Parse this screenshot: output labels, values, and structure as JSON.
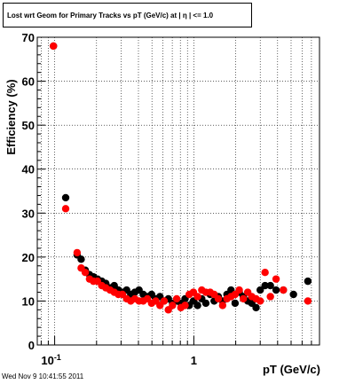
{
  "chart_data": {
    "type": "scatter",
    "title": "Lost wrt Geom for Primary Tracks vs pT (GeV/c) at |  η | <= 1.0",
    "xlabel": "pT (GeV/c)",
    "ylabel": "Efficiency (%)",
    "x_scale": "log",
    "xlim": [
      0.075,
      8.0
    ],
    "ylim": [
      0,
      70
    ],
    "x_tick_labels": [
      {
        "value": 0.1,
        "base": "10",
        "exp": "-1"
      },
      {
        "value": 1,
        "text": "1"
      }
    ],
    "y_tick_labels": [
      "0",
      "10",
      "20",
      "30",
      "40",
      "50",
      "60",
      "70"
    ],
    "grid": true,
    "series": [
      {
        "color": "#000000",
        "points": [
          {
            "x": 0.098,
            "y": 68.0
          },
          {
            "x": 0.12,
            "y": 33.5
          },
          {
            "x": 0.145,
            "y": 20.5
          },
          {
            "x": 0.155,
            "y": 19.5
          },
          {
            "x": 0.166,
            "y": 17.0
          },
          {
            "x": 0.178,
            "y": 16.0
          },
          {
            "x": 0.19,
            "y": 15.5
          },
          {
            "x": 0.203,
            "y": 15.0
          },
          {
            "x": 0.218,
            "y": 14.5
          },
          {
            "x": 0.233,
            "y": 14.0
          },
          {
            "x": 0.25,
            "y": 13.0
          },
          {
            "x": 0.268,
            "y": 13.5
          },
          {
            "x": 0.287,
            "y": 12.5
          },
          {
            "x": 0.307,
            "y": 12.0
          },
          {
            "x": 0.329,
            "y": 12.5
          },
          {
            "x": 0.352,
            "y": 11.5
          },
          {
            "x": 0.377,
            "y": 12.0
          },
          {
            "x": 0.404,
            "y": 12.5
          },
          {
            "x": 0.433,
            "y": 11.5
          },
          {
            "x": 0.464,
            "y": 11.0
          },
          {
            "x": 0.497,
            "y": 11.5
          },
          {
            "x": 0.533,
            "y": 10.5
          },
          {
            "x": 0.571,
            "y": 11.0
          },
          {
            "x": 0.612,
            "y": 10.0
          },
          {
            "x": 0.656,
            "y": 10.5
          },
          {
            "x": 0.703,
            "y": 9.5
          },
          {
            "x": 0.753,
            "y": 10.0
          },
          {
            "x": 0.807,
            "y": 9.5
          },
          {
            "x": 0.865,
            "y": 10.5
          },
          {
            "x": 0.927,
            "y": 9.0
          },
          {
            "x": 0.993,
            "y": 10.0
          },
          {
            "x": 1.064,
            "y": 9.0
          },
          {
            "x": 1.14,
            "y": 10.5
          },
          {
            "x": 1.22,
            "y": 9.5
          },
          {
            "x": 1.31,
            "y": 11.5
          },
          {
            "x": 1.4,
            "y": 10.0
          },
          {
            "x": 1.5,
            "y": 11.0
          },
          {
            "x": 1.61,
            "y": 10.0
          },
          {
            "x": 1.73,
            "y": 11.5
          },
          {
            "x": 1.85,
            "y": 12.5
          },
          {
            "x": 1.98,
            "y": 9.5
          },
          {
            "x": 2.12,
            "y": 12.0
          },
          {
            "x": 2.27,
            "y": 11.0
          },
          {
            "x": 2.44,
            "y": 10.0
          },
          {
            "x": 2.61,
            "y": 9.5
          },
          {
            "x": 2.8,
            "y": 8.5
          },
          {
            "x": 3.0,
            "y": 12.5
          },
          {
            "x": 3.25,
            "y": 13.5
          },
          {
            "x": 3.55,
            "y": 13.5
          },
          {
            "x": 3.9,
            "y": 12.5
          },
          {
            "x": 4.4,
            "y": 12.5
          },
          {
            "x": 5.2,
            "y": 11.5
          },
          {
            "x": 6.6,
            "y": 14.5
          }
        ]
      },
      {
        "color": "#ff0000",
        "points": [
          {
            "x": 0.098,
            "y": 68.0
          },
          {
            "x": 0.12,
            "y": 31.0
          },
          {
            "x": 0.145,
            "y": 21.0
          },
          {
            "x": 0.155,
            "y": 17.5
          },
          {
            "x": 0.166,
            "y": 16.5
          },
          {
            "x": 0.178,
            "y": 15.0
          },
          {
            "x": 0.19,
            "y": 14.5
          },
          {
            "x": 0.203,
            "y": 14.5
          },
          {
            "x": 0.218,
            "y": 13.5
          },
          {
            "x": 0.233,
            "y": 13.0
          },
          {
            "x": 0.25,
            "y": 12.5
          },
          {
            "x": 0.268,
            "y": 12.0
          },
          {
            "x": 0.287,
            "y": 11.5
          },
          {
            "x": 0.307,
            "y": 11.5
          },
          {
            "x": 0.329,
            "y": 10.5
          },
          {
            "x": 0.352,
            "y": 10.0
          },
          {
            "x": 0.377,
            "y": 10.5
          },
          {
            "x": 0.404,
            "y": 10.0
          },
          {
            "x": 0.433,
            "y": 10.0
          },
          {
            "x": 0.464,
            "y": 10.5
          },
          {
            "x": 0.497,
            "y": 9.5
          },
          {
            "x": 0.533,
            "y": 10.0
          },
          {
            "x": 0.571,
            "y": 9.0
          },
          {
            "x": 0.612,
            "y": 10.0
          },
          {
            "x": 0.656,
            "y": 8.0
          },
          {
            "x": 0.703,
            "y": 9.0
          },
          {
            "x": 0.753,
            "y": 10.5
          },
          {
            "x": 0.807,
            "y": 8.5
          },
          {
            "x": 0.865,
            "y": 9.0
          },
          {
            "x": 0.927,
            "y": 11.5
          },
          {
            "x": 0.993,
            "y": 12.0
          },
          {
            "x": 1.064,
            "y": 11.0
          },
          {
            "x": 1.14,
            "y": 12.5
          },
          {
            "x": 1.22,
            "y": 12.0
          },
          {
            "x": 1.31,
            "y": 12.0
          },
          {
            "x": 1.4,
            "y": 11.5
          },
          {
            "x": 1.5,
            "y": 10.5
          },
          {
            "x": 1.61,
            "y": 9.0
          },
          {
            "x": 1.73,
            "y": 10.5
          },
          {
            "x": 1.85,
            "y": 11.0
          },
          {
            "x": 1.98,
            "y": 11.5
          },
          {
            "x": 2.12,
            "y": 12.5
          },
          {
            "x": 2.27,
            "y": 10.5
          },
          {
            "x": 2.44,
            "y": 12.0
          },
          {
            "x": 2.61,
            "y": 11.0
          },
          {
            "x": 2.8,
            "y": 10.5
          },
          {
            "x": 3.0,
            "y": 10.0
          },
          {
            "x": 3.25,
            "y": 16.5
          },
          {
            "x": 3.55,
            "y": 11.0
          },
          {
            "x": 3.9,
            "y": 15.0
          },
          {
            "x": 4.4,
            "y": 12.5
          },
          {
            "x": 6.6,
            "y": 10.0
          }
        ]
      }
    ]
  },
  "footer": {
    "timestamp": "Wed Nov  9 10:41:55 2011"
  }
}
